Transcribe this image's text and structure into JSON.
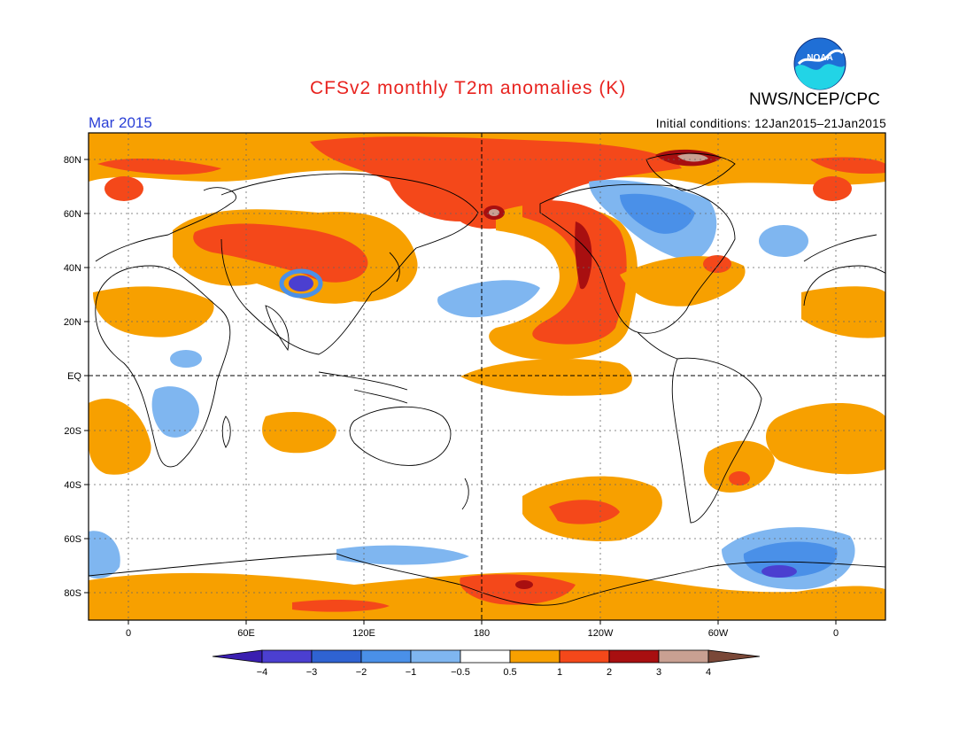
{
  "header": {
    "title": "CFSv2 monthly T2m anomalies (K)",
    "agency": "NWS/NCEP/CPC",
    "logo_text": "NOAA",
    "month": "Mar 2015",
    "initial_conditions": "Initial conditions: 12Jan2015–21Jan2015"
  },
  "axes": {
    "lat_ticks": [
      "80N",
      "60N",
      "40N",
      "20N",
      "EQ",
      "20S",
      "40S",
      "60S",
      "80S"
    ],
    "lon_ticks": [
      "0",
      "60E",
      "120E",
      "180",
      "120W",
      "60W",
      "0"
    ]
  },
  "colorbar": {
    "labels": [
      "−4",
      "−3",
      "−2",
      "−1",
      "−0.5",
      "0.5",
      "1",
      "2",
      "3",
      "4"
    ],
    "colors": [
      "#3a1fb0",
      "#4b3fd0",
      "#2f63d2",
      "#4a90e8",
      "#7fb6f0",
      "#ffffff",
      "#f7a000",
      "#f4481a",
      "#a80f10",
      "#c9a092",
      "#7a4838"
    ]
  },
  "chart_data": {
    "type": "heatmap",
    "title": "CFSv2 monthly T2m anomalies (K)",
    "period": "Mar 2015",
    "units": "K",
    "lon_range": [
      -20,
      380
    ],
    "lat_range": [
      -90,
      90
    ],
    "levels": [
      -4,
      -3,
      -2,
      -1,
      -0.5,
      0.5,
      1,
      2,
      3,
      4
    ],
    "regions": [
      {
        "name": "NE Pacific / W North America warm tongue",
        "anomaly": 2
      },
      {
        "name": "Central Asia / China warm",
        "anomaly": 2
      },
      {
        "name": "Eastern Siberia / Alaska warm",
        "anomaly": 2
      },
      {
        "name": "Arctic near Greenland warm",
        "anomaly": 3
      },
      {
        "name": "Eastern Canada cold",
        "anomaly": -1
      },
      {
        "name": "Tibetan Plateau cold",
        "anomaly": -2
      },
      {
        "name": "South Atlantic / Weddell cold",
        "anomaly": -2
      },
      {
        "name": "Equatorial eastern Pacific warm",
        "anomaly": 1
      },
      {
        "name": "South Pacific warm",
        "anomaly": 1
      },
      {
        "name": "Antarctic Ross sector warm",
        "anomaly": 2
      }
    ]
  }
}
